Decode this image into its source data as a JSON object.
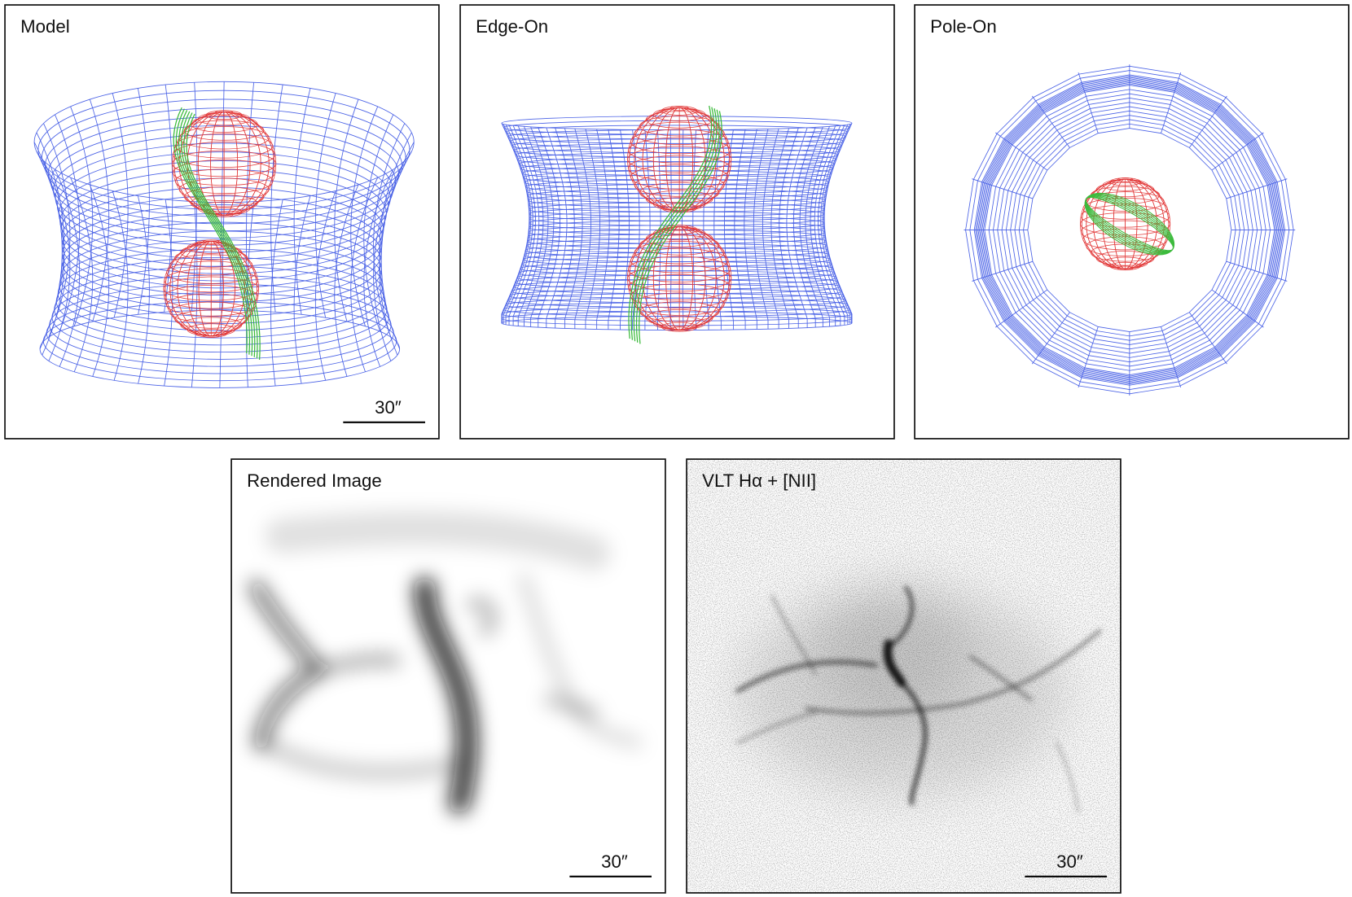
{
  "panels": [
    {
      "label": "Model",
      "scale_bar": "30″"
    },
    {
      "label": "Edge-On"
    },
    {
      "label": "Pole-On"
    },
    {
      "label": "Rendered Image",
      "scale_bar": "30″"
    },
    {
      "label": "VLT Hα + [NII]",
      "scale_bar": "30″"
    }
  ]
}
